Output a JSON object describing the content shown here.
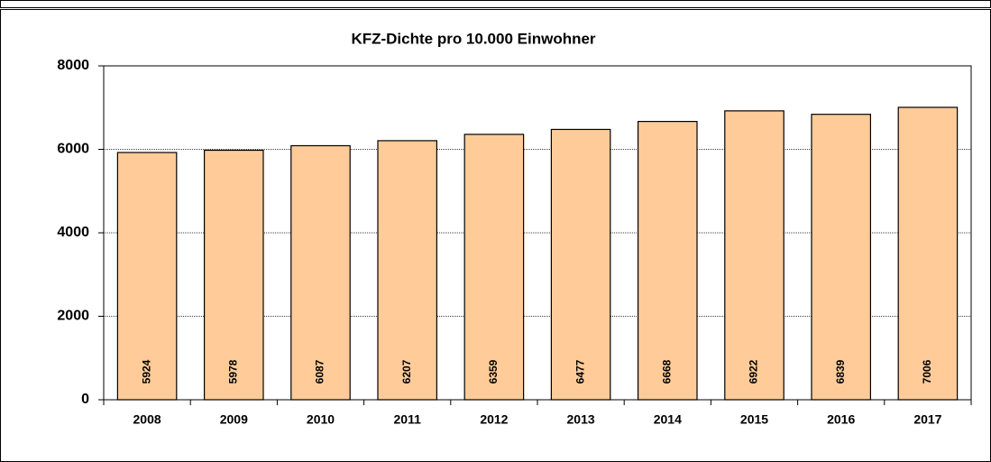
{
  "chart_data": {
    "type": "bar",
    "title": "KFZ-Dichte pro 10.000 Einwohner",
    "categories": [
      "2008",
      "2009",
      "2010",
      "2011",
      "2012",
      "2013",
      "2014",
      "2015",
      "2016",
      "2017"
    ],
    "values": [
      5924,
      5978,
      6087,
      6207,
      6359,
      6477,
      6668,
      6922,
      6839,
      7006
    ],
    "color": "#ffcc99",
    "ylim": [
      0,
      8000
    ],
    "yticks": [
      0,
      2000,
      4000,
      6000,
      8000
    ],
    "grid": true
  }
}
